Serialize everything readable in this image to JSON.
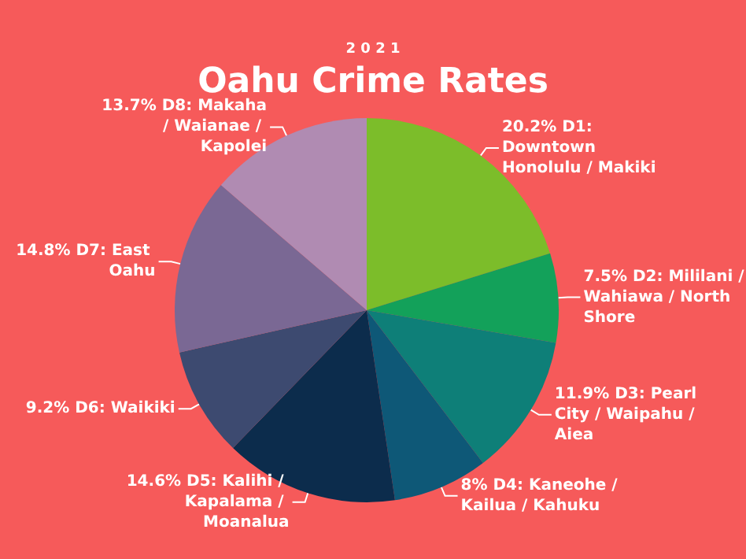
{
  "chart_data": {
    "type": "pie",
    "title": "Oahu Crime Rates",
    "subtitle": "2 0 2 1",
    "categories": [
      "D1: Downtown Honolulu / Makiki",
      "D2: Mililani / Wahiawa / North Shore",
      "D3: Pearl City / Waipahu / Aiea",
      "D4: Kaneohe / Kailua / Kahuku",
      "D5: Kalihi / Kapalama / Moanalua",
      "D6: Waikiki",
      "D7: East Oahu",
      "D8: Makaha / Waianae / Kapolei"
    ],
    "values": [
      20.2,
      7.5,
      11.9,
      8,
      14.6,
      9.2,
      14.8,
      13.7
    ],
    "value_labels": [
      "20.2%",
      "7.5%",
      "11.9%",
      "8%",
      "14.6%",
      "9.2%",
      "14.8%",
      "13.7%"
    ],
    "colors": [
      "#7cbd2a",
      "#13a15a",
      "#0e7f78",
      "#0e5877",
      "#0c2c4c",
      "#3d4a70",
      "#7a6894",
      "#b08bb2"
    ],
    "legend": false
  }
}
